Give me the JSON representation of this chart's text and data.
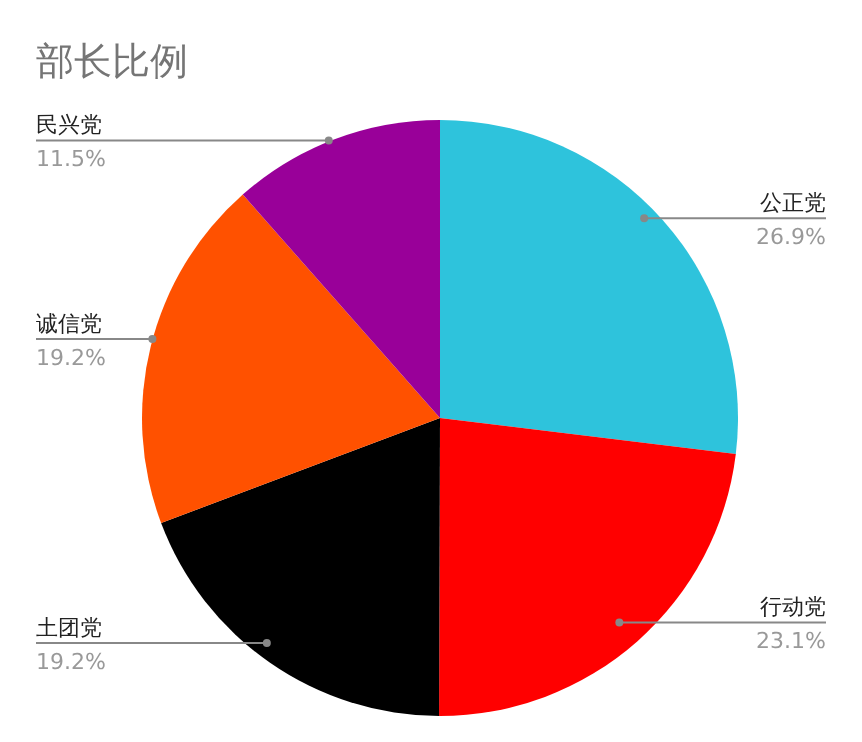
{
  "chart_data": {
    "type": "pie",
    "title": "部长比例",
    "categories": [
      "公正党",
      "行动党",
      "土团党",
      "诚信党",
      "民兴党"
    ],
    "values": [
      26.9,
      23.1,
      19.2,
      19.2,
      11.5
    ],
    "value_labels": [
      "26.9%",
      "23.1%",
      "19.2%",
      "19.2%",
      "11.5%"
    ],
    "colors": [
      "#2ec3dc",
      "#ff0000",
      "#000000",
      "#ff5100",
      "#990099"
    ]
  }
}
